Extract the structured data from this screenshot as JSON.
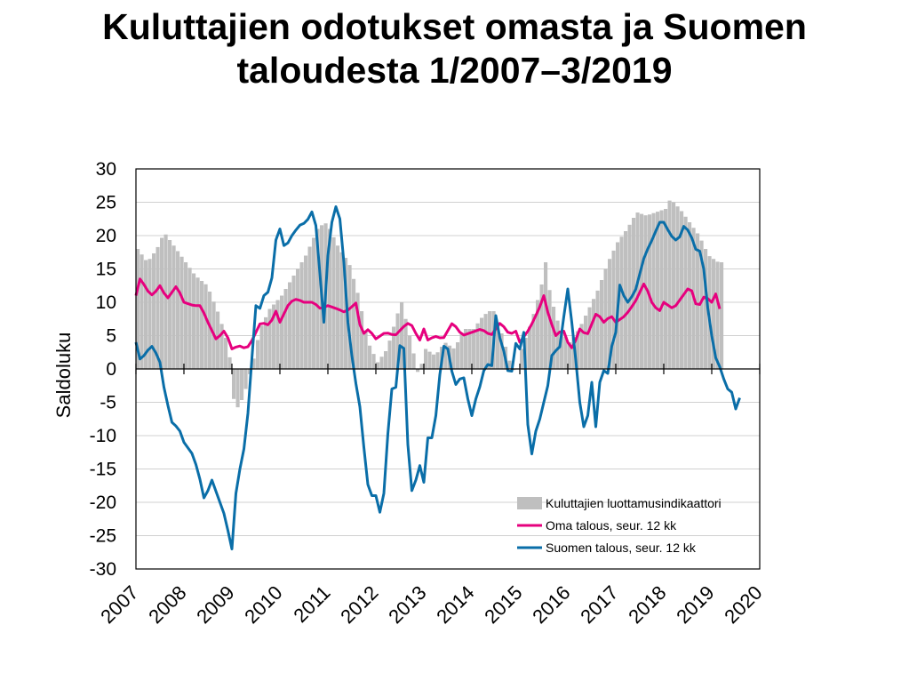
{
  "title_line1": "Kuluttajien odotukset omasta ja Suomen",
  "title_line2": "taloudesta 1/2007–3/2019",
  "chart_data": {
    "type": "bar+line",
    "ylabel": "Saldoluku",
    "ylim": [
      -30,
      30
    ],
    "yticks": [
      30,
      25,
      20,
      15,
      10,
      5,
      0,
      -5,
      -10,
      -15,
      -20,
      -25,
      -30
    ],
    "xlim": [
      2007,
      2020
    ],
    "xticks": [
      "2007",
      "2008",
      "2009",
      "2010",
      "2011",
      "2012",
      "2013",
      "2014",
      "2015",
      "2016",
      "2017",
      "2018",
      "2019",
      "2020"
    ],
    "grid": true,
    "legend_position": "bottom-right",
    "series": [
      {
        "name": "Kuluttajien luottamusindikaattori",
        "kind": "bar",
        "color": "#bfbfbf",
        "keyframes": [
          [
            2007.0,
            18
          ],
          [
            2007.2,
            16
          ],
          [
            2007.4,
            18
          ],
          [
            2007.55,
            20.5
          ],
          [
            2007.8,
            18
          ],
          [
            2008.0,
            16
          ],
          [
            2008.2,
            14
          ],
          [
            2008.45,
            12.5
          ],
          [
            2008.7,
            8
          ],
          [
            2008.9,
            3
          ],
          [
            2009.0,
            -4.5
          ],
          [
            2009.1,
            -6
          ],
          [
            2009.25,
            -3
          ],
          [
            2009.4,
            1
          ],
          [
            2009.55,
            6
          ],
          [
            2009.75,
            9
          ],
          [
            2010.0,
            11
          ],
          [
            2010.25,
            14
          ],
          [
            2010.5,
            17
          ],
          [
            2010.75,
            21
          ],
          [
            2010.9,
            22
          ],
          [
            2011.0,
            21
          ],
          [
            2011.2,
            18
          ],
          [
            2011.4,
            16
          ],
          [
            2011.6,
            11
          ],
          [
            2011.8,
            4
          ],
          [
            2012.0,
            1
          ],
          [
            2012.2,
            3
          ],
          [
            2012.4,
            8
          ],
          [
            2012.5,
            10
          ],
          [
            2012.7,
            4
          ],
          [
            2012.85,
            -1
          ],
          [
            2013.0,
            3
          ],
          [
            2013.2,
            2
          ],
          [
            2013.4,
            4
          ],
          [
            2013.6,
            3
          ],
          [
            2013.8,
            6
          ],
          [
            2014.0,
            6
          ],
          [
            2014.2,
            8
          ],
          [
            2014.4,
            9
          ],
          [
            2014.6,
            5
          ],
          [
            2014.8,
            0
          ],
          [
            2014.9,
            -0.5
          ],
          [
            2015.0,
            3
          ],
          [
            2015.2,
            7
          ],
          [
            2015.4,
            12
          ],
          [
            2015.5,
            16
          ],
          [
            2015.6,
            11
          ],
          [
            2015.8,
            6
          ],
          [
            2016.0,
            4
          ],
          [
            2016.2,
            6
          ],
          [
            2016.4,
            9
          ],
          [
            2016.6,
            12
          ],
          [
            2016.8,
            16
          ],
          [
            2017.0,
            19
          ],
          [
            2017.2,
            21
          ],
          [
            2017.4,
            23.5
          ],
          [
            2017.6,
            23
          ],
          [
            2017.8,
            23.5
          ],
          [
            2018.0,
            24
          ],
          [
            2018.1,
            25.5
          ],
          [
            2018.3,
            24
          ],
          [
            2018.5,
            22
          ],
          [
            2018.7,
            20
          ],
          [
            2018.9,
            17
          ],
          [
            2019.0,
            16.5
          ],
          [
            2019.1,
            16
          ],
          [
            2019.17,
            16
          ]
        ]
      },
      {
        "name": "Oma talous, seur. 12 kk",
        "kind": "line",
        "color": "#e6007e",
        "keyframes": [
          [
            2007.0,
            11
          ],
          [
            2007.1,
            14
          ],
          [
            2007.2,
            12
          ],
          [
            2007.35,
            11
          ],
          [
            2007.5,
            12.5
          ],
          [
            2007.65,
            10.5
          ],
          [
            2007.85,
            12.5
          ],
          [
            2008.0,
            10
          ],
          [
            2008.2,
            9.5
          ],
          [
            2008.35,
            9.5
          ],
          [
            2008.5,
            7
          ],
          [
            2008.7,
            4
          ],
          [
            2008.8,
            6
          ],
          [
            2008.9,
            5
          ],
          [
            2009.0,
            3
          ],
          [
            2009.15,
            3.5
          ],
          [
            2009.3,
            3
          ],
          [
            2009.4,
            4
          ],
          [
            2009.6,
            7
          ],
          [
            2009.8,
            6.5
          ],
          [
            2009.9,
            9
          ],
          [
            2010.0,
            7
          ],
          [
            2010.2,
            10
          ],
          [
            2010.35,
            10.5
          ],
          [
            2010.5,
            10
          ],
          [
            2010.7,
            10
          ],
          [
            2010.85,
            9
          ],
          [
            2011.0,
            9.5
          ],
          [
            2011.2,
            9
          ],
          [
            2011.35,
            8.5
          ],
          [
            2011.45,
            9
          ],
          [
            2011.6,
            10
          ],
          [
            2011.7,
            5
          ],
          [
            2011.85,
            6
          ],
          [
            2012.0,
            4.5
          ],
          [
            2012.2,
            5.5
          ],
          [
            2012.4,
            5
          ],
          [
            2012.6,
            6.5
          ],
          [
            2012.7,
            7
          ],
          [
            2012.8,
            6
          ],
          [
            2012.9,
            4
          ],
          [
            2013.0,
            6
          ],
          [
            2013.1,
            4
          ],
          [
            2013.2,
            5
          ],
          [
            2013.4,
            4.5
          ],
          [
            2013.6,
            7
          ],
          [
            2013.8,
            5
          ],
          [
            2014.0,
            5.5
          ],
          [
            2014.2,
            6
          ],
          [
            2014.4,
            5
          ],
          [
            2014.6,
            7
          ],
          [
            2014.8,
            5
          ],
          [
            2014.9,
            6
          ],
          [
            2015.0,
            4
          ],
          [
            2015.2,
            6
          ],
          [
            2015.4,
            9
          ],
          [
            2015.5,
            11
          ],
          [
            2015.6,
            8
          ],
          [
            2015.75,
            5
          ],
          [
            2015.9,
            6
          ],
          [
            2016.0,
            4
          ],
          [
            2016.1,
            3
          ],
          [
            2016.25,
            6
          ],
          [
            2016.4,
            5
          ],
          [
            2016.6,
            8.5
          ],
          [
            2016.75,
            7
          ],
          [
            2016.9,
            8
          ],
          [
            2017.0,
            7
          ],
          [
            2017.2,
            8
          ],
          [
            2017.4,
            10
          ],
          [
            2017.6,
            13
          ],
          [
            2017.75,
            10
          ],
          [
            2017.9,
            8.5
          ],
          [
            2018.0,
            10
          ],
          [
            2018.2,
            9
          ],
          [
            2018.4,
            11
          ],
          [
            2018.55,
            12.5
          ],
          [
            2018.7,
            9
          ],
          [
            2018.85,
            11
          ],
          [
            2019.0,
            10
          ],
          [
            2019.1,
            11.5
          ],
          [
            2019.15,
            8.5
          ],
          [
            2019.2,
            10
          ]
        ]
      },
      {
        "name": "Suomen talous, seur. 12 kk",
        "kind": "line",
        "color": "#0a6ea8",
        "keyframes": [
          [
            2007.0,
            4
          ],
          [
            2007.1,
            1
          ],
          [
            2007.2,
            2.5
          ],
          [
            2007.35,
            3.5
          ],
          [
            2007.5,
            1
          ],
          [
            2007.6,
            -3.5
          ],
          [
            2007.75,
            -8
          ],
          [
            2007.9,
            -9
          ],
          [
            2008.0,
            -11
          ],
          [
            2008.2,
            -13
          ],
          [
            2008.35,
            -17
          ],
          [
            2008.45,
            -20.5
          ],
          [
            2008.55,
            -16
          ],
          [
            2008.7,
            -19
          ],
          [
            2008.85,
            -22
          ],
          [
            2009.0,
            -27
          ],
          [
            2009.1,
            -17
          ],
          [
            2009.2,
            -14
          ],
          [
            2009.3,
            -10
          ],
          [
            2009.4,
            0
          ],
          [
            2009.5,
            9.5
          ],
          [
            2009.6,
            9
          ],
          [
            2009.7,
            12
          ],
          [
            2009.8,
            11
          ],
          [
            2009.9,
            19
          ],
          [
            2010.0,
            21
          ],
          [
            2010.1,
            18
          ],
          [
            2010.25,
            20
          ],
          [
            2010.4,
            21.5
          ],
          [
            2010.55,
            22
          ],
          [
            2010.7,
            24
          ],
          [
            2010.8,
            19
          ],
          [
            2010.9,
            5
          ],
          [
            2011.0,
            17
          ],
          [
            2011.1,
            23
          ],
          [
            2011.2,
            25
          ],
          [
            2011.3,
            20
          ],
          [
            2011.4,
            8
          ],
          [
            2011.5,
            2
          ],
          [
            2011.6,
            -3
          ],
          [
            2011.7,
            -7
          ],
          [
            2011.8,
            -16.5
          ],
          [
            2011.9,
            -19
          ],
          [
            2012.0,
            -19
          ],
          [
            2012.1,
            -22
          ],
          [
            2012.2,
            -17
          ],
          [
            2012.3,
            -2.5
          ],
          [
            2012.4,
            -4
          ],
          [
            2012.5,
            3.5
          ],
          [
            2012.6,
            3
          ],
          [
            2012.7,
            -18.5
          ],
          [
            2012.8,
            -18
          ],
          [
            2012.9,
            -14
          ],
          [
            2013.0,
            -17
          ],
          [
            2013.1,
            -9
          ],
          [
            2013.2,
            -11
          ],
          [
            2013.3,
            -3
          ],
          [
            2013.4,
            3.5
          ],
          [
            2013.5,
            3
          ],
          [
            2013.6,
            -1
          ],
          [
            2013.7,
            -3
          ],
          [
            2013.8,
            0
          ],
          [
            2013.9,
            -4
          ],
          [
            2014.0,
            -7
          ],
          [
            2014.1,
            -4
          ],
          [
            2014.2,
            -2
          ],
          [
            2014.3,
            1.5
          ],
          [
            2014.4,
            -1
          ],
          [
            2014.5,
            8
          ],
          [
            2014.6,
            4
          ],
          [
            2014.7,
            2
          ],
          [
            2014.8,
            -2.5
          ],
          [
            2014.9,
            4
          ],
          [
            2015.0,
            3
          ],
          [
            2015.1,
            6
          ],
          [
            2015.2,
            -15.5
          ],
          [
            2015.3,
            -10
          ],
          [
            2015.4,
            -8
          ],
          [
            2015.5,
            -5
          ],
          [
            2015.6,
            -2
          ],
          [
            2015.7,
            4
          ],
          [
            2015.8,
            1.5
          ],
          [
            2015.9,
            7
          ],
          [
            2016.0,
            12
          ],
          [
            2016.1,
            6
          ],
          [
            2016.2,
            -1
          ],
          [
            2016.3,
            -9
          ],
          [
            2016.4,
            -8
          ],
          [
            2016.5,
            -2
          ],
          [
            2016.6,
            -10
          ],
          [
            2016.7,
            2
          ],
          [
            2016.8,
            -2.5
          ],
          [
            2016.9,
            3
          ],
          [
            2017.0,
            5.5
          ],
          [
            2017.1,
            14
          ],
          [
            2017.2,
            9.5
          ],
          [
            2017.3,
            10.5
          ],
          [
            2017.4,
            11.5
          ],
          [
            2017.6,
            17
          ],
          [
            2017.8,
            20
          ],
          [
            2017.9,
            22
          ],
          [
            2018.0,
            22
          ],
          [
            2018.15,
            20
          ],
          [
            2018.3,
            19
          ],
          [
            2018.4,
            21.5
          ],
          [
            2018.55,
            20.5
          ],
          [
            2018.65,
            18
          ],
          [
            2018.8,
            17.5
          ],
          [
            2018.9,
            10
          ],
          [
            2019.0,
            5
          ],
          [
            2019.1,
            1
          ],
          [
            2019.2,
            0
          ],
          [
            2019.3,
            -3
          ],
          [
            2019.4,
            -3
          ],
          [
            2019.5,
            -6
          ],
          [
            2019.6,
            -4
          ]
        ]
      }
    ]
  }
}
